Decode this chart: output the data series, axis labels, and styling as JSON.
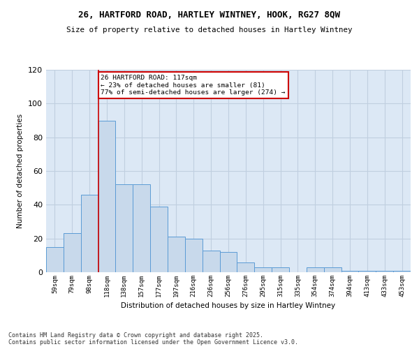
{
  "title_line1": "26, HARTFORD ROAD, HARTLEY WINTNEY, HOOK, RG27 8QW",
  "title_line2": "Size of property relative to detached houses in Hartley Wintney",
  "xlabel": "Distribution of detached houses by size in Hartley Wintney",
  "ylabel": "Number of detached properties",
  "categories": [
    "59sqm",
    "79sqm",
    "98sqm",
    "118sqm",
    "138sqm",
    "157sqm",
    "177sqm",
    "197sqm",
    "216sqm",
    "236sqm",
    "256sqm",
    "276sqm",
    "295sqm",
    "315sqm",
    "335sqm",
    "354sqm",
    "374sqm",
    "394sqm",
    "413sqm",
    "433sqm",
    "453sqm"
  ],
  "values": [
    15,
    23,
    46,
    90,
    52,
    52,
    39,
    21,
    20,
    13,
    12,
    6,
    3,
    3,
    0,
    3,
    3,
    1,
    1,
    1,
    1
  ],
  "bar_color": "#c8d9eb",
  "bar_edge_color": "#5b9bd5",
  "vline_index": 3,
  "vline_color": "#cc0000",
  "annotation_text": "26 HARTFORD ROAD: 117sqm\n← 23% of detached houses are smaller (81)\n77% of semi-detached houses are larger (274) →",
  "annotation_box_color": "#ffffff",
  "annotation_box_edge": "#cc0000",
  "grid_color": "#c0cfe0",
  "bg_color": "#dce8f5",
  "ylim": [
    0,
    120
  ],
  "yticks": [
    0,
    20,
    40,
    60,
    80,
    100,
    120
  ],
  "footer_line1": "Contains HM Land Registry data © Crown copyright and database right 2025.",
  "footer_line2": "Contains public sector information licensed under the Open Government Licence v3.0."
}
